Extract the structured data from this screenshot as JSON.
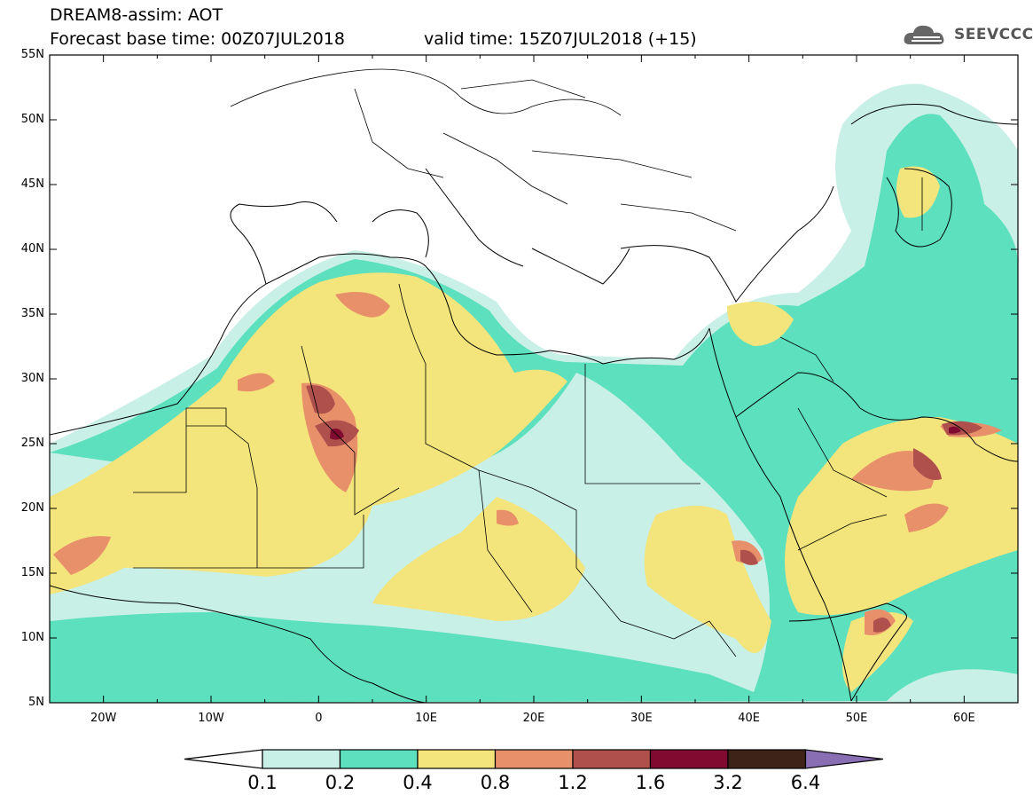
{
  "header": {
    "model_line": "DREAM8-assim: AOT",
    "base_line": "Forecast base time: 00Z07JUL2018",
    "valid_line": "valid time: 15Z07JUL2018 (+15)"
  },
  "logo": {
    "text": "SEEVCCC",
    "icon": "cloud-logo-icon"
  },
  "map": {
    "lat_labels": [
      "55N",
      "50N",
      "45N",
      "40N",
      "35N",
      "30N",
      "25N",
      "20N",
      "15N",
      "10N",
      "5N"
    ],
    "lon_labels": [
      "20W",
      "10W",
      "0",
      "10E",
      "20E",
      "30E",
      "40E",
      "50E",
      "60E"
    ],
    "lon_range": [
      -25,
      65
    ],
    "lat_range": [
      5,
      55
    ]
  },
  "colorbar": {
    "labels": [
      "0.1",
      "0.2",
      "0.4",
      "0.8",
      "1.2",
      "1.6",
      "3.2",
      "6.4"
    ],
    "colors": {
      "below": "#ffffff",
      "c1": "#c8f0e6",
      "c2": "#5ce0be",
      "c3": "#f4e47c",
      "c4": "#e8906a",
      "c5": "#b0504c",
      "c6": "#800a30",
      "c7": "#3e2418",
      "above": "#8a6eb4"
    }
  }
}
